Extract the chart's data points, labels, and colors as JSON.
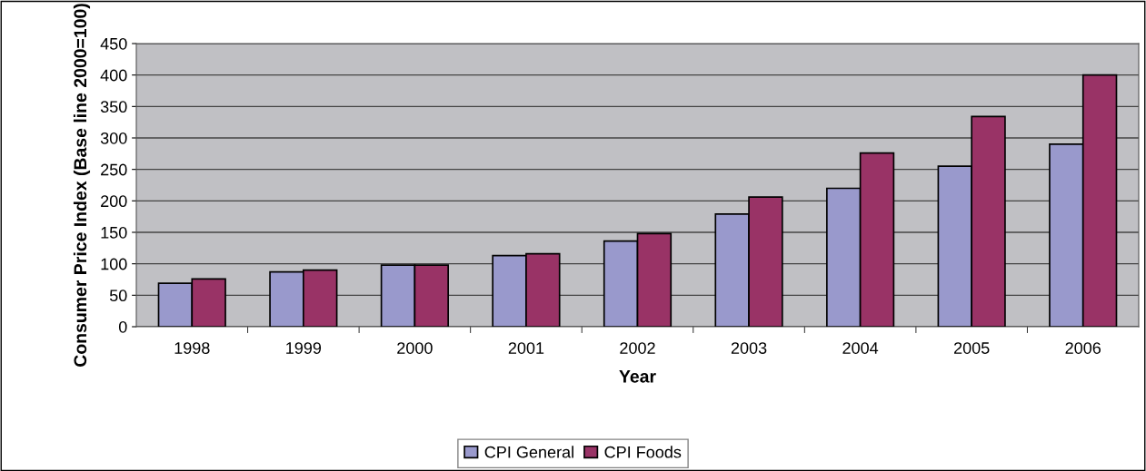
{
  "chart_data": {
    "type": "bar",
    "xlabel": "Year",
    "ylabel": "Consumer Price Index (Base line 2000=100)",
    "categories": [
      "1998",
      "1999",
      "2000",
      "2001",
      "2002",
      "2003",
      "2004",
      "2005",
      "2006"
    ],
    "series": [
      {
        "name": "CPI General",
        "color": "#9999cc",
        "values": [
          69,
          87,
          98,
          113,
          136,
          179,
          220,
          255,
          290
        ]
      },
      {
        "name": "CPI Foods",
        "color": "#993366",
        "values": [
          76,
          90,
          98,
          116,
          148,
          206,
          276,
          334,
          400
        ]
      }
    ],
    "ylim": [
      0,
      450
    ],
    "yticks": [
      0,
      50,
      100,
      150,
      200,
      250,
      300,
      350,
      400,
      450
    ],
    "grid": "y",
    "legend": "bottom"
  }
}
